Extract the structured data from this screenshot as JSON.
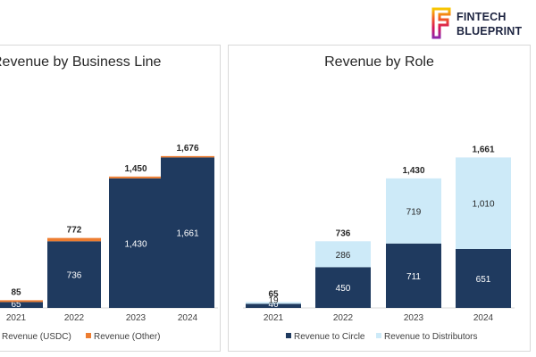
{
  "brand": {
    "line1": "FINTECH",
    "line2": "BLUEPRINT",
    "colors": [
      "#f7c600",
      "#f15a24",
      "#d4145a",
      "#8e24aa"
    ]
  },
  "colors": {
    "navy": "#1f3a5f",
    "orange": "#ed7d31",
    "light_blue": "#cdeaf8"
  },
  "chart_data": [
    {
      "type": "bar",
      "stacked": true,
      "title": "Revenue by Business Line",
      "categories": [
        "2021",
        "2022",
        "2023",
        "2024"
      ],
      "series": [
        {
          "name": "Revenue (USDC)",
          "values": [
            65,
            736,
            1430,
            1661
          ],
          "value_labels": [
            "65",
            "736",
            "1,430",
            "1,661"
          ],
          "color": "#1f3a5f"
        },
        {
          "name": "Revenue (Other)",
          "values": [
            20,
            36,
            20,
            15
          ],
          "value_labels": [
            "",
            "",
            "",
            ""
          ],
          "color": "#ed7d31"
        }
      ],
      "totals": [
        "85",
        "772",
        "1,450",
        "1,676"
      ],
      "legend_labels": [
        "Revenue (USDC)",
        "Revenue (Other)"
      ],
      "legend_position": "bottom",
      "ylim": [
        0,
        2000
      ]
    },
    {
      "type": "bar",
      "stacked": true,
      "title": "Revenue by Role",
      "categories": [
        "2021",
        "2022",
        "2023",
        "2024"
      ],
      "series": [
        {
          "name": "Revenue to Circle",
          "values": [
            46,
            450,
            711,
            651
          ],
          "value_labels": [
            "46",
            "450",
            "711",
            "651"
          ],
          "color": "#1f3a5f"
        },
        {
          "name": "Revenue to Distributors",
          "values": [
            19,
            286,
            719,
            1010
          ],
          "value_labels": [
            "19",
            "286",
            "719",
            "1,010"
          ],
          "color": "#cdeaf8"
        }
      ],
      "totals": [
        "65",
        "736",
        "1,430",
        "1,661"
      ],
      "legend_labels": [
        "Revenue to Circle",
        "Revenue to Distributors"
      ],
      "legend_position": "bottom",
      "ylim": [
        0,
        2000
      ]
    }
  ]
}
